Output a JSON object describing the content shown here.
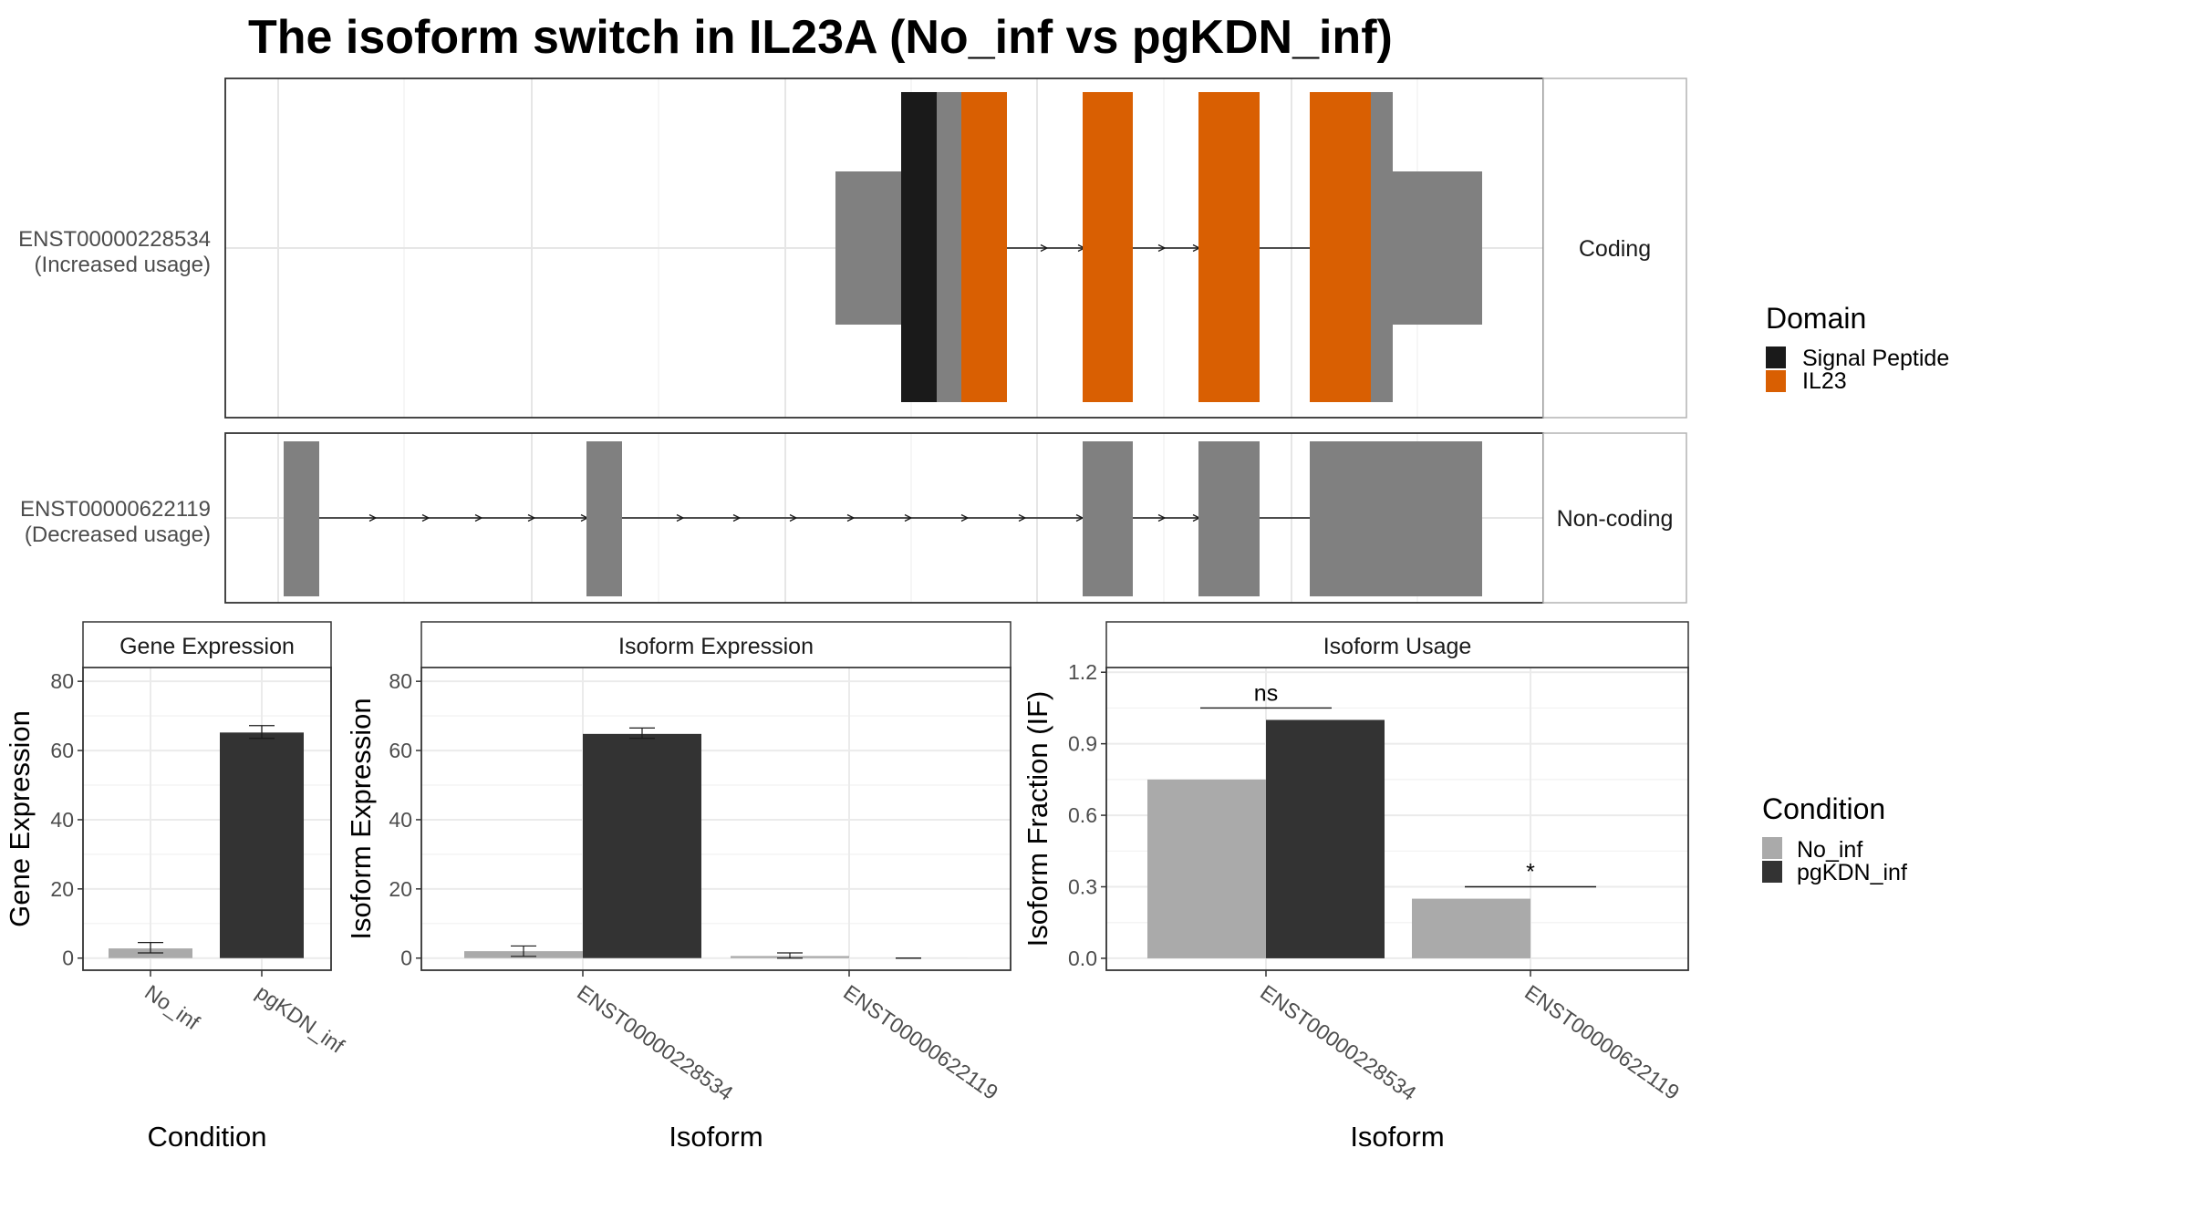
{
  "title": "The isoform switch in IL23A (No_inf vs pgKDN_inf)",
  "colors": {
    "signal_peptide": "#1a1a1a",
    "il23": "#d95f02",
    "exon": "#808080",
    "no_inf": "#aaaaaa",
    "pgkdn_inf": "#333333"
  },
  "transcripts": [
    {
      "id": "ENST00000228534",
      "usage": "(Increased usage)",
      "type": "Coding"
    },
    {
      "id": "ENST00000622119",
      "usage": "(Decreased usage)",
      "type": "Non-coding"
    }
  ],
  "domain_legend": {
    "title": "Domain",
    "items": [
      "Signal Peptide",
      "IL23"
    ]
  },
  "condition_legend": {
    "title": "Condition",
    "items": [
      "No_inf",
      "pgKDN_inf"
    ]
  },
  "chart_data": [
    {
      "type": "bar",
      "panel": "Gene Expression",
      "categories": [
        "No_inf",
        "pgKDN_inf"
      ],
      "values": [
        2.8,
        65.2
      ],
      "errors": [
        [
          1.5,
          4.5
        ],
        [
          63.5,
          67.2
        ]
      ],
      "xlabel": "Condition",
      "ylabel": "Gene Expression",
      "yticks": [
        "0",
        "20",
        "40",
        "60",
        "80"
      ],
      "ylim": [
        -3.5,
        84
      ]
    },
    {
      "type": "bar",
      "panel": "Isoform Expression",
      "categories": [
        "ENST00000228534",
        "ENST00000622119"
      ],
      "series": [
        {
          "name": "No_inf",
          "values": [
            2.0,
            0.6
          ],
          "errors": [
            [
              0.5,
              3.5
            ],
            [
              0.0,
              1.5
            ]
          ]
        },
        {
          "name": "pgKDN_inf",
          "values": [
            64.8,
            0.0
          ],
          "errors": [
            [
              63.5,
              66.5
            ],
            [
              0.0,
              0.0
            ]
          ]
        }
      ],
      "xlabel": "Isoform",
      "ylabel": "Isoform Expression",
      "yticks": [
        "0",
        "20",
        "40",
        "60",
        "80"
      ],
      "ylim": [
        -3.5,
        84
      ]
    },
    {
      "type": "bar",
      "panel": "Isoform Usage",
      "categories": [
        "ENST00000228534",
        "ENST00000622119"
      ],
      "series": [
        {
          "name": "No_inf",
          "values": [
            0.75,
            0.25
          ]
        },
        {
          "name": "pgKDN_inf",
          "values": [
            1.0,
            0.0
          ]
        }
      ],
      "significance": [
        "ns",
        "*"
      ],
      "xlabel": "Isoform",
      "ylabel": "Isoform Fraction (IF)",
      "yticks": [
        "0.0",
        "0.3",
        "0.6",
        "0.9",
        "1.2"
      ],
      "ylim": [
        -0.05,
        1.22
      ]
    }
  ]
}
